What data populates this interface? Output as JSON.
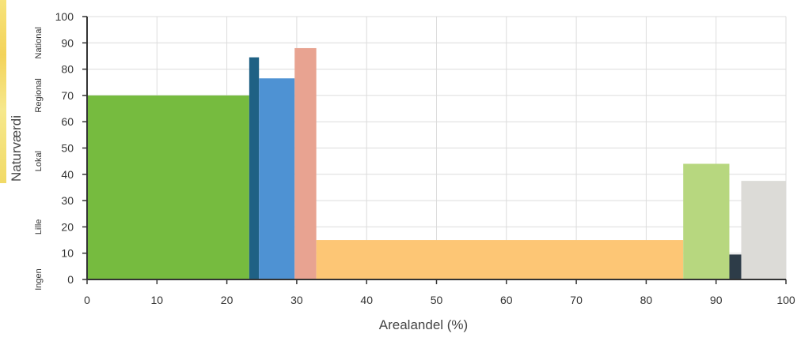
{
  "chart_data": {
    "type": "bar",
    "variant": "variable-width",
    "title": "",
    "xlabel": "Arealandel (%)",
    "ylabel": "Naturværdi",
    "xlim": [
      0,
      100
    ],
    "ylim": [
      0,
      100
    ],
    "xticks": [
      "0",
      "10",
      "20",
      "30",
      "40",
      "50",
      "60",
      "70",
      "80",
      "90",
      "100"
    ],
    "yticks": [
      "0",
      "10",
      "20",
      "30",
      "40",
      "50",
      "60",
      "70",
      "80",
      "90",
      "100"
    ],
    "categories": [
      {
        "label": "Ingen",
        "y": 0
      },
      {
        "label": "Lille",
        "y": 20
      },
      {
        "label": "Lokal",
        "y": 45
      },
      {
        "label": "Regional",
        "y": 70
      },
      {
        "label": "National",
        "y": 90
      }
    ],
    "grid": true,
    "legend": "none",
    "bars": [
      {
        "x0": 0.0,
        "x1": 23.2,
        "value": 70,
        "color": "#76bb3f"
      },
      {
        "x0": 23.2,
        "x1": 24.6,
        "value": 84.5,
        "color": "#1f6184"
      },
      {
        "x0": 24.6,
        "x1": 29.7,
        "value": 76.5,
        "color": "#4e92d3"
      },
      {
        "x0": 29.7,
        "x1": 32.8,
        "value": 88,
        "color": "#e8a391"
      },
      {
        "x0": 32.8,
        "x1": 85.3,
        "value": 15,
        "color": "#fdc675"
      },
      {
        "x0": 85.3,
        "x1": 91.9,
        "value": 44,
        "color": "#b7d77f"
      },
      {
        "x0": 91.9,
        "x1": 93.6,
        "value": 9.5,
        "color": "#2d3c48"
      },
      {
        "x0": 93.6,
        "x1": 100.0,
        "value": 37.5,
        "color": "#dcdbd7"
      }
    ]
  }
}
